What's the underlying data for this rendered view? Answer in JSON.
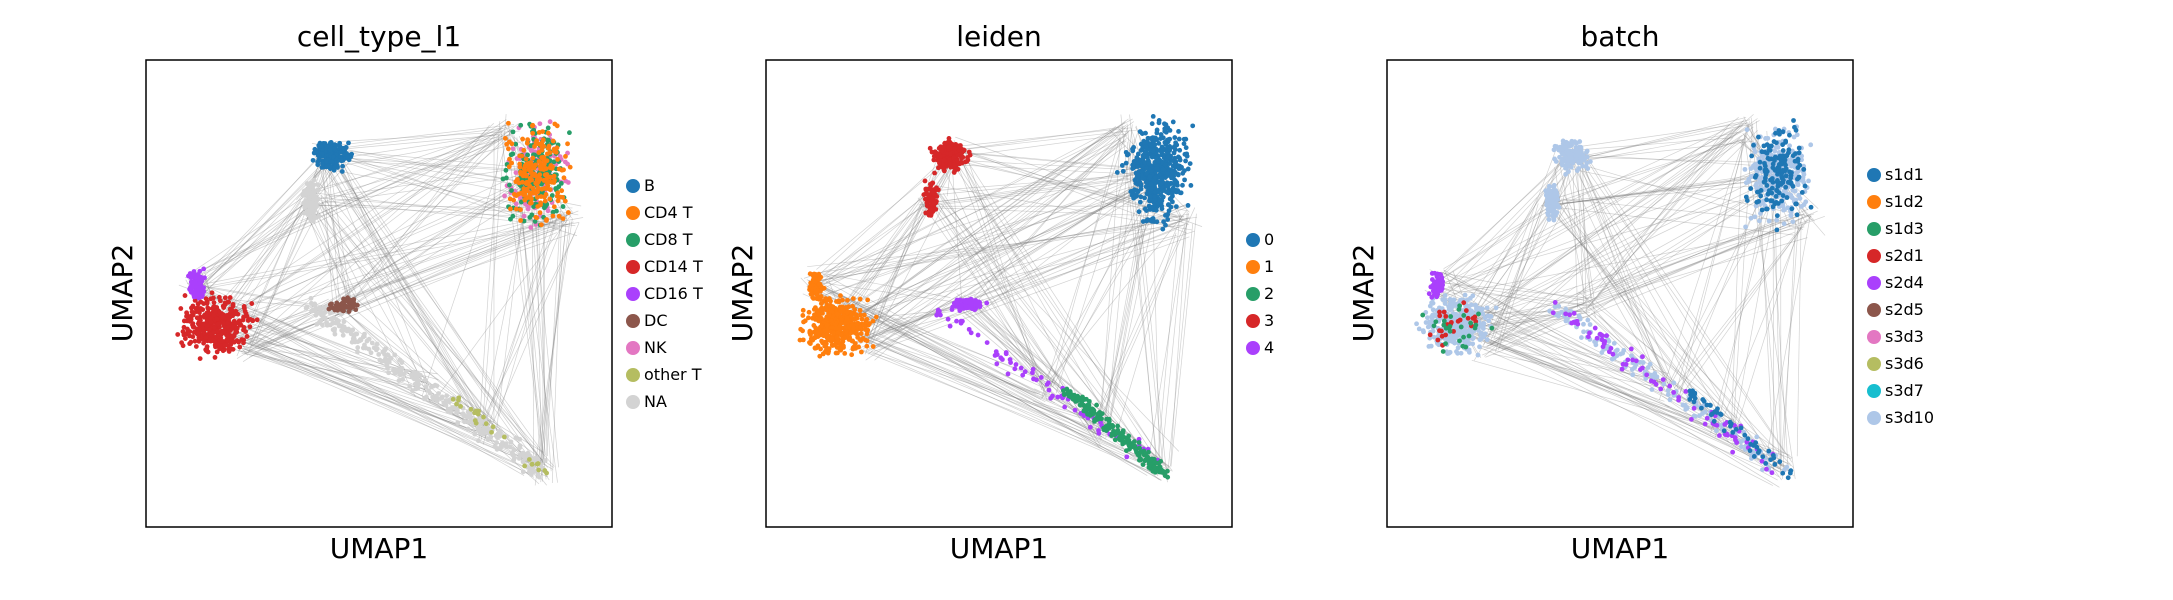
{
  "figure": {
    "panels": [
      {
        "title": "cell_type_l1",
        "xlabel": "UMAP1",
        "ylabel": "UMAP2",
        "legend": [
          "B",
          "CD4 T",
          "CD8 T",
          "CD14 T",
          "CD16 T",
          "DC",
          "NK",
          "other T",
          "NA"
        ]
      },
      {
        "title": "leiden",
        "xlabel": "UMAP1",
        "ylabel": "UMAP2",
        "legend": [
          "0",
          "1",
          "2",
          "3",
          "4"
        ]
      },
      {
        "title": "batch",
        "xlabel": "UMAP1",
        "ylabel": "UMAP2",
        "legend": [
          "s1d1",
          "s1d2",
          "s1d3",
          "s2d1",
          "s2d4",
          "s2d5",
          "s3d3",
          "s3d6",
          "s3d7",
          "s3d10"
        ]
      }
    ]
  },
  "chart_data": [
    {
      "type": "scatter",
      "title": "cell_type_l1",
      "xlabel": "UMAP1",
      "ylabel": "UMAP2",
      "ticks": "none",
      "grid": false,
      "edges": "gray PAGA-style connectivity lines between all cells",
      "legend_position": "right",
      "series": [
        {
          "name": "B",
          "color": "#1f77b4"
        },
        {
          "name": "CD4 T",
          "color": "#ff7f0e"
        },
        {
          "name": "CD8 T",
          "color": "#279e68"
        },
        {
          "name": "CD14 T",
          "color": "#d62728"
        },
        {
          "name": "CD16 T",
          "color": "#aa40fc"
        },
        {
          "name": "DC",
          "color": "#8c564b"
        },
        {
          "name": "NK",
          "color": "#e377c2"
        },
        {
          "name": "other T",
          "color": "#b5bd61"
        },
        {
          "name": "NA",
          "color": "#d3d3d3"
        }
      ]
    },
    {
      "type": "scatter",
      "title": "leiden",
      "xlabel": "UMAP1",
      "ylabel": "UMAP2",
      "ticks": "none",
      "grid": false,
      "legend_position": "right",
      "series": [
        {
          "name": "0",
          "color": "#1f77b4"
        },
        {
          "name": "1",
          "color": "#ff7f0e"
        },
        {
          "name": "2",
          "color": "#279e68"
        },
        {
          "name": "3",
          "color": "#d62728"
        },
        {
          "name": "4",
          "color": "#aa40fc"
        }
      ]
    },
    {
      "type": "scatter",
      "title": "batch",
      "xlabel": "UMAP1",
      "ylabel": "UMAP2",
      "ticks": "none",
      "grid": false,
      "legend_position": "right",
      "series": [
        {
          "name": "s1d1",
          "color": "#1f77b4"
        },
        {
          "name": "s1d2",
          "color": "#ff7f0e"
        },
        {
          "name": "s1d3",
          "color": "#279e68"
        },
        {
          "name": "s2d1",
          "color": "#d62728"
        },
        {
          "name": "s2d4",
          "color": "#aa40fc"
        },
        {
          "name": "s2d5",
          "color": "#8c564b"
        },
        {
          "name": "s3d3",
          "color": "#e377c2"
        },
        {
          "name": "s3d6",
          "color": "#b5bd61"
        },
        {
          "name": "s3d7",
          "color": "#17becf"
        },
        {
          "name": "s3d10",
          "color": "#aec7e8"
        }
      ]
    }
  ]
}
